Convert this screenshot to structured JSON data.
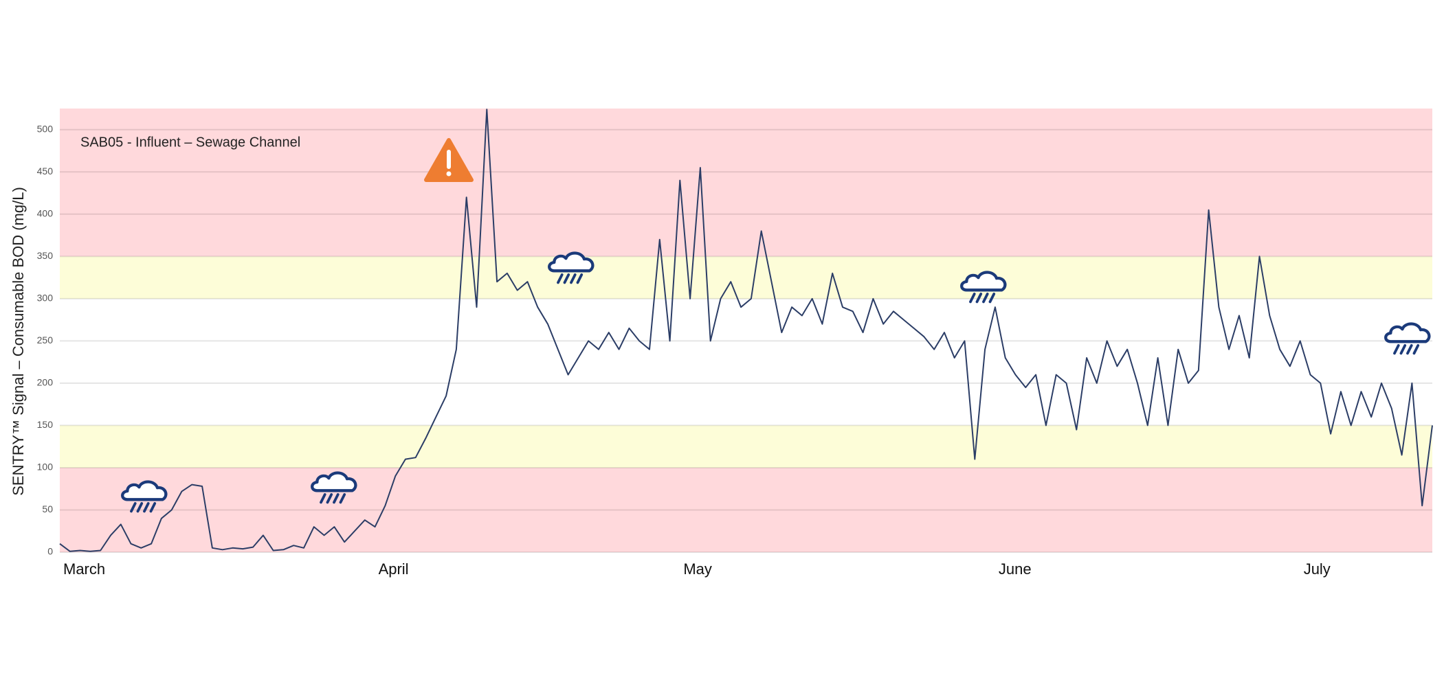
{
  "chart_data": {
    "type": "line",
    "title": "SAB05 - Influent – Sewage Channel",
    "y_label": "SENTRY™ Signal – Consumable BOD (mg/L)",
    "categories": [
      "March",
      null,
      null,
      null,
      null,
      null,
      null,
      null,
      null,
      null,
      null,
      null,
      null,
      null,
      null,
      null,
      null,
      null,
      null,
      null,
      null,
      null,
      null,
      null,
      null,
      null,
      null,
      null,
      null,
      null,
      null,
      "April",
      null,
      null,
      null,
      null,
      null,
      null,
      null,
      null,
      null,
      null,
      null,
      null,
      null,
      null,
      null,
      null,
      null,
      null,
      null,
      null,
      null,
      null,
      null,
      null,
      null,
      null,
      null,
      null,
      null,
      "May",
      null,
      null,
      null,
      null,
      null,
      null,
      null,
      null,
      null,
      null,
      null,
      null,
      null,
      null,
      null,
      null,
      null,
      null,
      null,
      null,
      null,
      null,
      null,
      null,
      null,
      null,
      null,
      null,
      null,
      null,
      "June",
      null,
      null,
      null,
      null,
      null,
      null,
      null,
      null,
      null,
      null,
      null,
      null,
      null,
      null,
      null,
      null,
      null,
      null,
      null,
      null,
      null,
      null,
      null,
      null,
      null,
      null,
      null,
      null,
      null,
      "July",
      null,
      null,
      null,
      null,
      null,
      null,
      null,
      null,
      null,
      null,
      null,
      null,
      null
    ],
    "series": [
      {
        "color": "#2b3d66",
        "values": [
          10,
          1,
          2,
          1,
          2,
          20,
          33,
          10,
          5,
          10,
          40,
          50,
          72,
          80,
          78,
          5,
          3,
          5,
          4,
          6,
          20,
          2,
          3,
          8,
          5,
          30,
          20,
          30,
          12,
          25,
          38,
          30,
          55,
          90,
          110,
          112,
          135,
          160,
          185,
          240,
          420,
          290,
          524,
          320,
          330,
          310,
          320,
          290,
          270,
          240,
          210,
          230,
          250,
          240,
          260,
          240,
          265,
          250,
          240,
          370,
          250,
          440,
          300,
          455,
          250,
          300,
          320,
          290,
          300,
          380,
          320,
          260,
          290,
          280,
          300,
          270,
          330,
          290,
          285,
          260,
          300,
          270,
          285,
          275,
          265,
          255,
          240,
          260,
          230,
          250,
          110,
          240,
          290,
          230,
          210,
          195,
          210,
          150,
          210,
          200,
          145,
          230,
          200,
          250,
          220,
          240,
          200,
          150,
          230,
          150,
          240,
          200,
          215,
          405,
          290,
          240,
          280,
          230,
          350,
          280,
          240,
          220,
          250,
          210,
          200,
          140,
          190,
          150,
          190,
          160,
          200,
          170,
          115,
          200,
          55,
          150
        ]
      }
    ],
    "ylim": [
      0,
      525
    ],
    "yticks": [
      0,
      50,
      100,
      150,
      200,
      250,
      300,
      350,
      400,
      450,
      500
    ],
    "grid": true,
    "bands": [
      {
        "from": 0,
        "to": 100,
        "color": "#ffd9dc"
      },
      {
        "from": 100,
        "to": 150,
        "color": "#fdfdd8"
      },
      {
        "from": 300,
        "to": 350,
        "color": "#fdfdd8"
      },
      {
        "from": 350,
        "to": 525,
        "color": "#ffd9dc"
      }
    ]
  }
}
